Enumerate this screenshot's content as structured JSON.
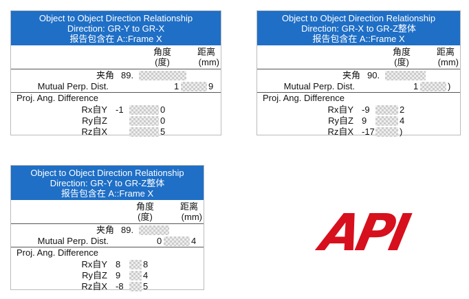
{
  "panels": [
    {
      "title": [
        "Object to Object Direction Relationship",
        "Direction: GR-Y to GR-X",
        "报告包含在 A::Frame X"
      ],
      "angle_header": "角度",
      "angle_unit": "(度)",
      "dist_header": "距离",
      "dist_unit": "(mm)",
      "angle_row": {
        "label": "夹角",
        "start": "89."
      },
      "dist_row": {
        "label": "Mutual Perp. Dist.",
        "start": "1",
        "end": "9"
      },
      "proj_heading": "Proj. Ang. Difference",
      "proj_rows": [
        {
          "label": "Rx自Y",
          "start": "-1",
          "end": "0"
        },
        {
          "label": "Ry自Z",
          "end": "0"
        },
        {
          "label": "Rz自X",
          "end": "5"
        }
      ]
    },
    {
      "title": [
        "Object to Object Direction Relationship",
        "Direction: GR-X to GR-Z整体",
        "报告包含在 A::Frame X"
      ],
      "angle_header": "角度",
      "angle_unit": "(度)",
      "dist_header": "距离",
      "dist_unit": "(mm)",
      "angle_row": {
        "label": "夹角",
        "start": "90."
      },
      "dist_row": {
        "label": "Mutual Perp. Dist.",
        "start": "1",
        "end": ")"
      },
      "proj_heading": "Proj. Ang. Difference",
      "proj_rows": [
        {
          "label": "Rx自Y",
          "start": "-9",
          "end": "2"
        },
        {
          "label": "Ry自Z",
          "start": "9",
          "end": "4"
        },
        {
          "label": "Rz自X",
          "start": "-17",
          "end": ")"
        }
      ]
    },
    {
      "title": [
        "Object to Object Direction Relationship",
        "Direction: GR-Y to GR-Z整体",
        "报告包含在 A::Frame X"
      ],
      "angle_header": "角度",
      "angle_unit": "(度)",
      "dist_header": "距离",
      "dist_unit": "(mm)",
      "angle_row": {
        "label": "夹角",
        "start": "89."
      },
      "dist_row": {
        "label": "Mutual Perp. Dist.",
        "start": "0",
        "end": "4"
      },
      "proj_heading": "Proj. Ang. Difference",
      "proj_rows": [
        {
          "label": "Rx自Y",
          "start": "8",
          "end": "8"
        },
        {
          "label": "Ry自Z",
          "start": "9",
          "end": "4"
        },
        {
          "label": "Rz自X",
          "start": "-8",
          "end": "5"
        }
      ]
    }
  ],
  "logo": {
    "text": "API"
  }
}
